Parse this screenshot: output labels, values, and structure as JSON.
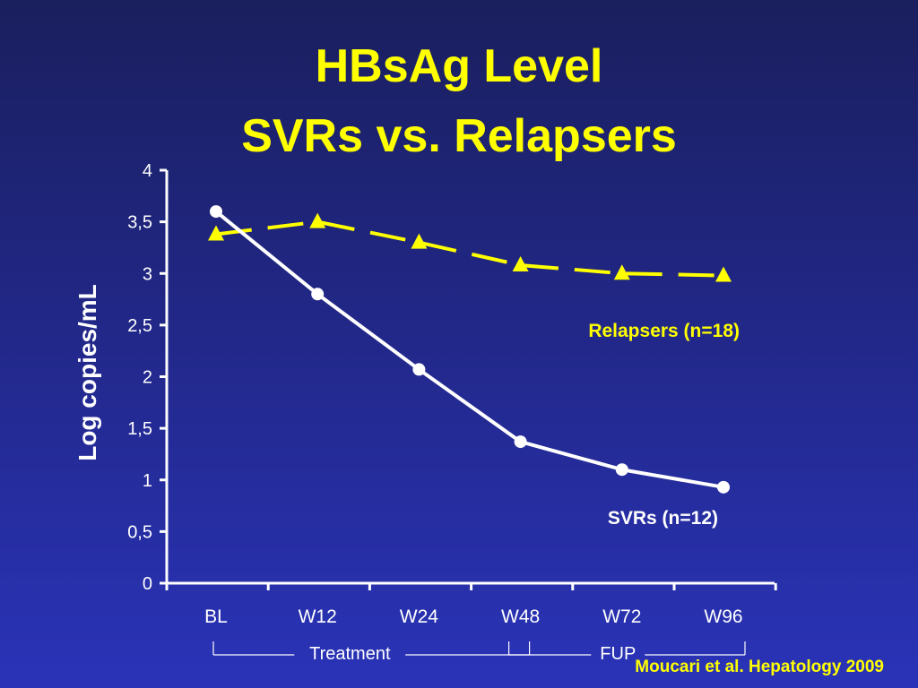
{
  "slide": {
    "title_line1": "HBsAg Level",
    "title_line2": "SVRs vs. Relapsers",
    "citation": "Moucari et al. Hepatology 2009"
  },
  "colors": {
    "background": "#2228a0",
    "title": "#ffff00",
    "relapsers": "#ffff00",
    "svrs": "#ffffff",
    "axis": "#ffffff"
  },
  "chart_data": {
    "type": "line",
    "ylabel": "Log copies/mL",
    "ylim": [
      0,
      4
    ],
    "yticks": [
      0,
      0.5,
      1,
      1.5,
      2,
      2.5,
      3,
      3.5,
      4
    ],
    "ytick_labels": [
      "0",
      "0,5",
      "1",
      "1,5",
      "2",
      "2,5",
      "3",
      "3,5",
      "4"
    ],
    "categories": [
      "BL",
      "W12",
      "W24",
      "W48",
      "W72",
      "W96"
    ],
    "series": [
      {
        "name": "Relapsers (n=18)",
        "values": [
          3.38,
          3.5,
          3.3,
          3.08,
          3.0,
          2.98
        ],
        "style": "dashed",
        "marker": "triangle",
        "color": "#ffff00"
      },
      {
        "name": "SVRs (n=12)",
        "values": [
          3.6,
          2.8,
          2.07,
          1.37,
          1.1,
          0.93
        ],
        "style": "solid",
        "marker": "circle",
        "color": "#ffffff"
      }
    ],
    "phases": [
      {
        "label": "Treatment",
        "from": "BL",
        "to": "W48"
      },
      {
        "label": "FUP",
        "from": "W48",
        "to": "W96"
      }
    ],
    "grid": false
  }
}
